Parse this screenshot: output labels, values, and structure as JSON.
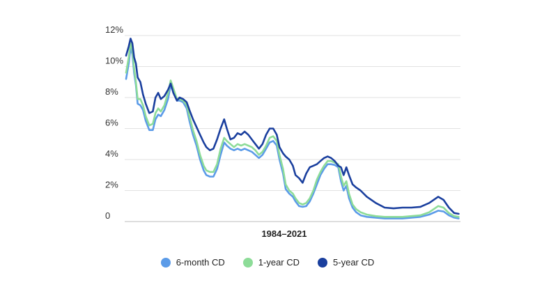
{
  "chart_data": {
    "type": "line",
    "xlabel": "1984–2021",
    "ylabel": "",
    "xlim": [
      1984,
      2021.5
    ],
    "ylim": [
      0,
      12
    ],
    "yticks": [
      "0",
      "2%",
      "4%",
      "6%",
      "8%",
      "10%",
      "12%"
    ],
    "ytick_values": [
      0,
      2,
      4,
      6,
      8,
      10,
      12
    ],
    "grid": "horizontal",
    "legend_position": "bottom",
    "series": [
      {
        "name": "6-month CD",
        "color": "#5b9be8",
        "points": [
          [
            1984.0,
            9.2
          ],
          [
            1984.3,
            10.2
          ],
          [
            1984.5,
            11.2
          ],
          [
            1984.7,
            10.8
          ],
          [
            1984.9,
            9.6
          ],
          [
            1985.1,
            8.8
          ],
          [
            1985.3,
            7.6
          ],
          [
            1985.6,
            7.5
          ],
          [
            1985.9,
            7.2
          ],
          [
            1986.2,
            6.5
          ],
          [
            1986.6,
            5.9
          ],
          [
            1987.0,
            5.9
          ],
          [
            1987.3,
            6.6
          ],
          [
            1987.6,
            6.9
          ],
          [
            1987.9,
            6.8
          ],
          [
            1988.3,
            7.2
          ],
          [
            1988.7,
            7.9
          ],
          [
            1989.0,
            8.8
          ],
          [
            1989.3,
            8.4
          ],
          [
            1989.7,
            7.8
          ],
          [
            1990.0,
            7.8
          ],
          [
            1990.4,
            7.7
          ],
          [
            1990.8,
            7.3
          ],
          [
            1991.1,
            6.5
          ],
          [
            1991.5,
            5.6
          ],
          [
            1991.9,
            4.9
          ],
          [
            1992.3,
            4.0
          ],
          [
            1992.7,
            3.3
          ],
          [
            1993.0,
            3.0
          ],
          [
            1993.4,
            2.9
          ],
          [
            1993.8,
            2.9
          ],
          [
            1994.2,
            3.4
          ],
          [
            1994.6,
            4.3
          ],
          [
            1995.0,
            5.1
          ],
          [
            1995.3,
            4.9
          ],
          [
            1995.7,
            4.7
          ],
          [
            1996.1,
            4.6
          ],
          [
            1996.5,
            4.7
          ],
          [
            1996.9,
            4.6
          ],
          [
            1997.3,
            4.7
          ],
          [
            1997.7,
            4.6
          ],
          [
            1998.1,
            4.5
          ],
          [
            1998.5,
            4.3
          ],
          [
            1998.9,
            4.1
          ],
          [
            1999.3,
            4.3
          ],
          [
            1999.7,
            4.7
          ],
          [
            2000.1,
            5.1
          ],
          [
            2000.5,
            5.2
          ],
          [
            2000.9,
            4.9
          ],
          [
            2001.2,
            4.0
          ],
          [
            2001.6,
            3.1
          ],
          [
            2001.9,
            2.1
          ],
          [
            2002.3,
            1.8
          ],
          [
            2002.7,
            1.6
          ],
          [
            2003.0,
            1.3
          ],
          [
            2003.4,
            1.0
          ],
          [
            2003.8,
            0.95
          ],
          [
            2004.2,
            1.0
          ],
          [
            2004.6,
            1.3
          ],
          [
            2005.0,
            1.8
          ],
          [
            2005.4,
            2.4
          ],
          [
            2005.8,
            3.0
          ],
          [
            2006.2,
            3.4
          ],
          [
            2006.6,
            3.7
          ],
          [
            2007.0,
            3.7
          ],
          [
            2007.4,
            3.65
          ],
          [
            2007.8,
            3.5
          ],
          [
            2008.1,
            2.6
          ],
          [
            2008.4,
            2.0
          ],
          [
            2008.7,
            2.3
          ],
          [
            2009.0,
            1.5
          ],
          [
            2009.4,
            0.9
          ],
          [
            2009.8,
            0.6
          ],
          [
            2010.3,
            0.4
          ],
          [
            2011.0,
            0.3
          ],
          [
            2012.0,
            0.25
          ],
          [
            2013.0,
            0.2
          ],
          [
            2014.0,
            0.2
          ],
          [
            2015.0,
            0.2
          ],
          [
            2016.0,
            0.25
          ],
          [
            2017.0,
            0.3
          ],
          [
            2018.0,
            0.45
          ],
          [
            2019.0,
            0.7
          ],
          [
            2019.6,
            0.65
          ],
          [
            2020.2,
            0.4
          ],
          [
            2020.8,
            0.25
          ],
          [
            2021.3,
            0.2
          ]
        ]
      },
      {
        "name": "1-year CD",
        "color": "#8ddc98",
        "points": [
          [
            1984.0,
            9.6
          ],
          [
            1984.3,
            10.6
          ],
          [
            1984.5,
            11.5
          ],
          [
            1984.7,
            11.1
          ],
          [
            1984.9,
            9.9
          ],
          [
            1985.1,
            9.0
          ],
          [
            1985.3,
            7.9
          ],
          [
            1985.6,
            7.9
          ],
          [
            1985.9,
            7.5
          ],
          [
            1986.2,
            6.8
          ],
          [
            1986.6,
            6.2
          ],
          [
            1987.0,
            6.3
          ],
          [
            1987.3,
            7.0
          ],
          [
            1987.6,
            7.3
          ],
          [
            1987.9,
            7.1
          ],
          [
            1988.3,
            7.5
          ],
          [
            1988.7,
            8.3
          ],
          [
            1989.0,
            9.1
          ],
          [
            1989.3,
            8.6
          ],
          [
            1989.7,
            7.9
          ],
          [
            1990.0,
            7.9
          ],
          [
            1990.4,
            7.8
          ],
          [
            1990.8,
            7.5
          ],
          [
            1991.1,
            6.8
          ],
          [
            1991.5,
            5.9
          ],
          [
            1991.9,
            5.2
          ],
          [
            1992.3,
            4.3
          ],
          [
            1992.7,
            3.6
          ],
          [
            1993.0,
            3.3
          ],
          [
            1993.4,
            3.2
          ],
          [
            1993.8,
            3.2
          ],
          [
            1994.2,
            3.7
          ],
          [
            1994.6,
            4.7
          ],
          [
            1995.0,
            5.4
          ],
          [
            1995.3,
            5.2
          ],
          [
            1995.7,
            5.0
          ],
          [
            1996.1,
            4.8
          ],
          [
            1996.5,
            5.0
          ],
          [
            1996.9,
            4.9
          ],
          [
            1997.3,
            5.0
          ],
          [
            1997.7,
            4.9
          ],
          [
            1998.1,
            4.8
          ],
          [
            1998.5,
            4.6
          ],
          [
            1998.9,
            4.3
          ],
          [
            1999.3,
            4.5
          ],
          [
            1999.7,
            4.9
          ],
          [
            2000.1,
            5.4
          ],
          [
            2000.5,
            5.5
          ],
          [
            2000.9,
            5.2
          ],
          [
            2001.2,
            4.3
          ],
          [
            2001.6,
            3.4
          ],
          [
            2001.9,
            2.4
          ],
          [
            2002.3,
            2.0
          ],
          [
            2002.7,
            1.8
          ],
          [
            2003.0,
            1.5
          ],
          [
            2003.4,
            1.2
          ],
          [
            2003.8,
            1.1
          ],
          [
            2004.2,
            1.2
          ],
          [
            2004.6,
            1.5
          ],
          [
            2005.0,
            2.0
          ],
          [
            2005.4,
            2.7
          ],
          [
            2005.8,
            3.2
          ],
          [
            2006.2,
            3.6
          ],
          [
            2006.6,
            3.9
          ],
          [
            2007.0,
            3.9
          ],
          [
            2007.4,
            3.8
          ],
          [
            2007.8,
            3.7
          ],
          [
            2008.1,
            2.9
          ],
          [
            2008.4,
            2.3
          ],
          [
            2008.7,
            2.6
          ],
          [
            2009.0,
            1.8
          ],
          [
            2009.4,
            1.1
          ],
          [
            2009.8,
            0.8
          ],
          [
            2010.3,
            0.6
          ],
          [
            2011.0,
            0.45
          ],
          [
            2012.0,
            0.35
          ],
          [
            2013.0,
            0.3
          ],
          [
            2014.0,
            0.3
          ],
          [
            2015.0,
            0.3
          ],
          [
            2016.0,
            0.35
          ],
          [
            2017.0,
            0.4
          ],
          [
            2018.0,
            0.6
          ],
          [
            2019.0,
            1.0
          ],
          [
            2019.6,
            0.9
          ],
          [
            2020.2,
            0.55
          ],
          [
            2020.8,
            0.35
          ],
          [
            2021.3,
            0.3
          ]
        ]
      },
      {
        "name": "5-year CD",
        "color": "#1a3f9e",
        "points": [
          [
            1984.0,
            10.7
          ],
          [
            1984.3,
            11.3
          ],
          [
            1984.5,
            11.8
          ],
          [
            1984.7,
            11.5
          ],
          [
            1984.9,
            10.6
          ],
          [
            1985.1,
            10.2
          ],
          [
            1985.3,
            9.3
          ],
          [
            1985.6,
            9.0
          ],
          [
            1985.9,
            8.2
          ],
          [
            1986.2,
            7.6
          ],
          [
            1986.6,
            7.0
          ],
          [
            1987.0,
            7.1
          ],
          [
            1987.3,
            8.0
          ],
          [
            1987.6,
            8.3
          ],
          [
            1987.9,
            7.9
          ],
          [
            1988.3,
            8.1
          ],
          [
            1988.7,
            8.5
          ],
          [
            1989.0,
            8.9
          ],
          [
            1989.3,
            8.3
          ],
          [
            1989.7,
            7.8
          ],
          [
            1990.0,
            8.0
          ],
          [
            1990.4,
            7.9
          ],
          [
            1990.8,
            7.7
          ],
          [
            1991.1,
            7.2
          ],
          [
            1991.5,
            6.6
          ],
          [
            1991.9,
            6.1
          ],
          [
            1992.3,
            5.6
          ],
          [
            1992.7,
            5.1
          ],
          [
            1993.0,
            4.8
          ],
          [
            1993.4,
            4.6
          ],
          [
            1993.8,
            4.7
          ],
          [
            1994.2,
            5.3
          ],
          [
            1994.6,
            6.0
          ],
          [
            1995.0,
            6.6
          ],
          [
            1995.3,
            6.0
          ],
          [
            1995.7,
            5.3
          ],
          [
            1996.1,
            5.4
          ],
          [
            1996.5,
            5.7
          ],
          [
            1996.9,
            5.6
          ],
          [
            1997.3,
            5.8
          ],
          [
            1997.7,
            5.6
          ],
          [
            1998.1,
            5.3
          ],
          [
            1998.5,
            5.0
          ],
          [
            1998.9,
            4.7
          ],
          [
            1999.3,
            5.0
          ],
          [
            1999.7,
            5.6
          ],
          [
            2000.1,
            6.0
          ],
          [
            2000.5,
            6.0
          ],
          [
            2000.9,
            5.6
          ],
          [
            2001.2,
            4.8
          ],
          [
            2001.6,
            4.4
          ],
          [
            2001.9,
            4.2
          ],
          [
            2002.3,
            4.0
          ],
          [
            2002.7,
            3.6
          ],
          [
            2003.0,
            3.0
          ],
          [
            2003.4,
            2.8
          ],
          [
            2003.8,
            2.5
          ],
          [
            2004.2,
            3.1
          ],
          [
            2004.6,
            3.5
          ],
          [
            2005.0,
            3.6
          ],
          [
            2005.4,
            3.7
          ],
          [
            2005.8,
            3.9
          ],
          [
            2006.2,
            4.1
          ],
          [
            2006.6,
            4.2
          ],
          [
            2007.0,
            4.1
          ],
          [
            2007.4,
            3.9
          ],
          [
            2007.8,
            3.6
          ],
          [
            2008.1,
            3.5
          ],
          [
            2008.4,
            3.0
          ],
          [
            2008.7,
            3.5
          ],
          [
            2009.0,
            3.0
          ],
          [
            2009.4,
            2.4
          ],
          [
            2009.8,
            2.2
          ],
          [
            2010.3,
            2.0
          ],
          [
            2011.0,
            1.6
          ],
          [
            2012.0,
            1.2
          ],
          [
            2013.0,
            0.9
          ],
          [
            2014.0,
            0.85
          ],
          [
            2015.0,
            0.9
          ],
          [
            2016.0,
            0.9
          ],
          [
            2017.0,
            0.95
          ],
          [
            2018.0,
            1.2
          ],
          [
            2019.0,
            1.6
          ],
          [
            2019.6,
            1.4
          ],
          [
            2020.2,
            0.9
          ],
          [
            2020.8,
            0.55
          ],
          [
            2021.3,
            0.5
          ]
        ]
      }
    ]
  }
}
